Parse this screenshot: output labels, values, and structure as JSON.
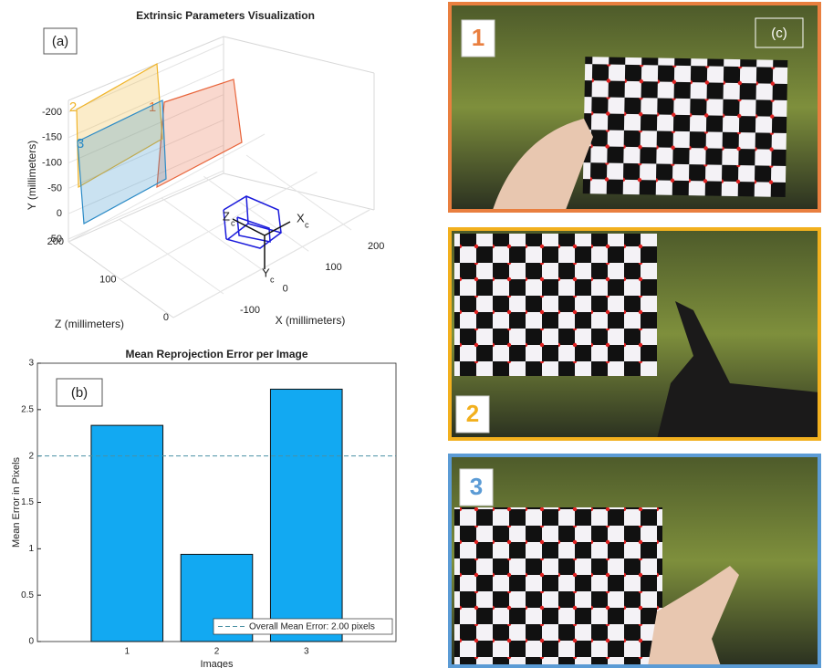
{
  "panel_labels": [
    "(a)",
    "(b)",
    "(c)"
  ],
  "chart_data": [
    {
      "type": "extrinsics3d",
      "title": "Extrinsic Parameters Visualization",
      "x_label": "X (millimeters)",
      "y_label": "Y (millimeters)",
      "z_label": "Z (millimeters)",
      "xlim": [
        -100,
        200
      ],
      "xticks": [
        -100,
        0,
        100,
        200
      ],
      "ylim": [
        -200,
        50
      ],
      "yticks": [
        -200,
        -150,
        -100,
        -50,
        0,
        50
      ],
      "zlim": [
        0,
        200
      ],
      "zticks": [
        0,
        100,
        200
      ],
      "planes": [
        {
          "name": "1",
          "color": "#e8643a"
        },
        {
          "name": "2",
          "color": "#f0b429"
        },
        {
          "name": "3",
          "color": "#2a8ac6"
        }
      ],
      "camera_axes": [
        {
          "label": "X",
          "sub": "c"
        },
        {
          "label": "Z",
          "sub": "c"
        },
        {
          "label": "Y",
          "sub": "c"
        }
      ],
      "camera_color": "#1a1adb"
    },
    {
      "type": "bar",
      "title": "Mean Reprojection Error per Image",
      "x_label": "Images",
      "y_label": "Mean Error in Pixels",
      "categories": [
        "1",
        "2",
        "3"
      ],
      "values": [
        2.33,
        0.94,
        2.72
      ],
      "color": "#12a9f2",
      "ylim": [
        0,
        3
      ],
      "yticks": [
        0,
        0.5,
        1,
        1.5,
        2,
        2.5,
        3
      ],
      "reference_line": {
        "value": 2,
        "color": "#4a90a4",
        "label": "Overall Mean Error: 2.00 pixels"
      },
      "legend": "lower right"
    }
  ],
  "photos": [
    {
      "label": "1",
      "color": "#e97f3f"
    },
    {
      "label": "2",
      "color": "#f2b01e"
    },
    {
      "label": "3",
      "color": "#5b9bd5"
    }
  ]
}
